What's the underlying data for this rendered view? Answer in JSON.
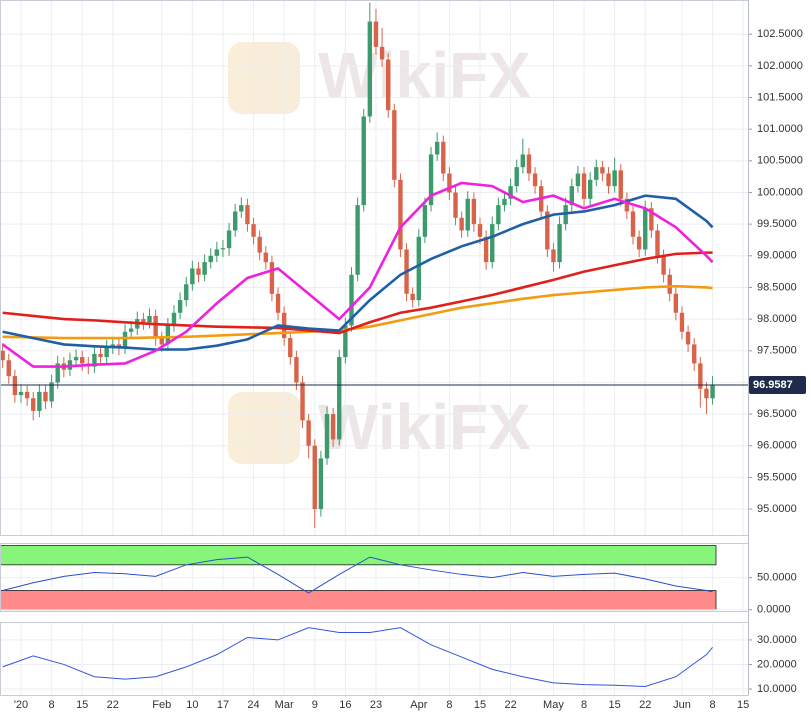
{
  "chart_data": {
    "type": "candlestick",
    "watermark": "WikiFX",
    "grid": true,
    "up_color": "#3d9a6c",
    "down_color": "#d9634a",
    "xlim": [
      -3.43,
      118.79
    ],
    "xticks": [
      {
        "value": 0,
        "label": "'20"
      },
      {
        "value": 5,
        "label": "8"
      },
      {
        "value": 10,
        "label": "15"
      },
      {
        "value": 15,
        "label": "22"
      },
      {
        "value": 23,
        "label": "Feb"
      },
      {
        "value": 28,
        "label": "10"
      },
      {
        "value": 33,
        "label": "17"
      },
      {
        "value": 38,
        "label": "24"
      },
      {
        "value": 43,
        "label": "Mar"
      },
      {
        "value": 48,
        "label": "9"
      },
      {
        "value": 53,
        "label": "16"
      },
      {
        "value": 58,
        "label": "23"
      },
      {
        "value": 65,
        "label": "Apr"
      },
      {
        "value": 70,
        "label": "8"
      },
      {
        "value": 75,
        "label": "15"
      },
      {
        "value": 80,
        "label": "22"
      },
      {
        "value": 87,
        "label": "May"
      },
      {
        "value": 92,
        "label": "8"
      },
      {
        "value": 97,
        "label": "15"
      },
      {
        "value": 102,
        "label": "22"
      },
      {
        "value": 108,
        "label": "Jun"
      },
      {
        "value": 113,
        "label": "8"
      },
      {
        "value": 118,
        "label": "15"
      }
    ],
    "ylim": [
      94.59,
      103.04
    ],
    "yticks": [
      {
        "value": 95,
        "label": "95.0000"
      },
      {
        "value": 95.5,
        "label": "95.5000"
      },
      {
        "value": 96,
        "label": "96.0000"
      },
      {
        "value": 96.5,
        "label": "96.5000"
      },
      {
        "value": 97,
        "label": "97.0000"
      },
      {
        "value": 97.5,
        "label": "97.5000"
      },
      {
        "value": 98,
        "label": "98.0000"
      },
      {
        "value": 98.5,
        "label": "98.5000"
      },
      {
        "value": 99,
        "label": "99.0000"
      },
      {
        "value": 99.5,
        "label": "99.5000"
      },
      {
        "value": 100,
        "label": "100.0000"
      },
      {
        "value": 100.5,
        "label": "100.5000"
      },
      {
        "value": 101,
        "label": "101.0000"
      },
      {
        "value": 101.5,
        "label": "101.5000"
      },
      {
        "value": 102,
        "label": "102.0000"
      },
      {
        "value": 102.5,
        "label": "102.5000"
      }
    ],
    "x": [
      -3,
      -2,
      -1,
      0,
      1,
      2,
      3,
      4,
      5,
      6,
      7,
      8,
      9,
      10,
      11,
      12,
      13,
      14,
      15,
      16,
      17,
      18,
      19,
      20,
      21,
      22,
      23,
      24,
      25,
      26,
      27,
      28,
      29,
      30,
      31,
      32,
      33,
      34,
      35,
      36,
      37,
      38,
      39,
      40,
      41,
      42,
      43,
      44,
      45,
      46,
      47,
      48,
      49,
      50,
      51,
      52,
      53,
      54,
      55,
      56,
      57,
      58,
      59,
      60,
      61,
      62,
      63,
      64,
      65,
      66,
      67,
      68,
      69,
      70,
      71,
      72,
      73,
      74,
      75,
      76,
      77,
      78,
      79,
      80,
      81,
      82,
      83,
      84,
      85,
      86,
      87,
      88,
      89,
      90,
      91,
      92,
      93,
      94,
      95,
      96,
      97,
      98,
      99,
      100,
      101,
      102,
      103,
      104,
      105,
      106,
      107,
      108,
      109,
      110,
      111,
      112,
      113
    ],
    "candles": [
      [
        97.5,
        97.62,
        97.23,
        97.35
      ],
      [
        97.35,
        97.45,
        96.98,
        97.1
      ],
      [
        97.1,
        97.2,
        96.68,
        96.8
      ],
      [
        96.8,
        96.97,
        96.68,
        96.85
      ],
      [
        96.85,
        96.95,
        96.63,
        96.75
      ],
      [
        96.75,
        96.85,
        96.4,
        96.55
      ],
      [
        96.55,
        96.97,
        96.45,
        96.85
      ],
      [
        96.85,
        96.95,
        96.58,
        96.7
      ],
      [
        96.7,
        97.12,
        96.6,
        97.0
      ],
      [
        97.0,
        97.42,
        96.9,
        97.3
      ],
      [
        97.3,
        97.4,
        97.08,
        97.2
      ],
      [
        97.2,
        97.47,
        97.1,
        97.35
      ],
      [
        97.35,
        97.52,
        97.25,
        97.4
      ],
      [
        97.4,
        97.5,
        97.18,
        97.3
      ],
      [
        97.3,
        97.4,
        97.13,
        97.25
      ],
      [
        97.25,
        97.57,
        97.15,
        97.45
      ],
      [
        97.45,
        97.55,
        97.28,
        97.4
      ],
      [
        97.4,
        97.67,
        97.3,
        97.55
      ],
      [
        97.55,
        97.72,
        97.45,
        97.6
      ],
      [
        97.6,
        97.7,
        97.43,
        97.55
      ],
      [
        97.55,
        97.92,
        97.45,
        97.8
      ],
      [
        97.8,
        97.97,
        97.7,
        97.85
      ],
      [
        97.85,
        98.12,
        97.75,
        98.0
      ],
      [
        98.0,
        98.1,
        97.83,
        97.95
      ],
      [
        97.95,
        98.17,
        97.85,
        98.05
      ],
      [
        98.05,
        98.15,
        97.58,
        97.7
      ],
      [
        97.7,
        97.8,
        97.48,
        97.6
      ],
      [
        97.6,
        98.02,
        97.5,
        97.9
      ],
      [
        97.9,
        98.22,
        97.8,
        98.1
      ],
      [
        98.1,
        98.42,
        98.0,
        98.3
      ],
      [
        98.3,
        98.67,
        98.2,
        98.55
      ],
      [
        98.55,
        98.92,
        98.45,
        98.8
      ],
      [
        98.8,
        98.9,
        98.58,
        98.7
      ],
      [
        98.7,
        99.02,
        98.6,
        98.9
      ],
      [
        98.9,
        99.12,
        98.8,
        99.0
      ],
      [
        99.0,
        99.22,
        98.9,
        99.1
      ],
      [
        99.1,
        99.25,
        98.98,
        99.12
      ],
      [
        99.12,
        99.52,
        99.0,
        99.4
      ],
      [
        99.4,
        99.82,
        99.3,
        99.7
      ],
      [
        99.7,
        99.92,
        99.6,
        99.8
      ],
      [
        99.8,
        99.9,
        99.38,
        99.5
      ],
      [
        99.5,
        99.6,
        99.18,
        99.3
      ],
      [
        99.3,
        99.4,
        98.93,
        99.05
      ],
      [
        99.05,
        99.15,
        98.78,
        98.9
      ],
      [
        98.9,
        99.0,
        98.28,
        98.4
      ],
      [
        98.4,
        98.5,
        97.98,
        98.1
      ],
      [
        98.1,
        98.2,
        97.58,
        97.7
      ],
      [
        97.7,
        97.8,
        97.28,
        97.4
      ],
      [
        97.4,
        97.5,
        96.88,
        97.0
      ],
      [
        97.0,
        97.1,
        96.28,
        96.4
      ],
      [
        96.4,
        96.5,
        95.8,
        96.0
      ],
      [
        96.0,
        96.1,
        94.7,
        95.0
      ],
      [
        95.0,
        95.92,
        94.88,
        95.8
      ],
      [
        95.8,
        96.62,
        95.7,
        96.5
      ],
      [
        96.5,
        96.6,
        95.98,
        96.1
      ],
      [
        96.1,
        97.52,
        96.0,
        97.4
      ],
      [
        97.4,
        98.02,
        97.3,
        97.9
      ],
      [
        97.9,
        98.82,
        97.8,
        98.7
      ],
      [
        98.7,
        99.92,
        98.6,
        99.8
      ],
      [
        99.8,
        101.32,
        99.7,
        101.2
      ],
      [
        101.2,
        103.0,
        101.1,
        102.7
      ],
      [
        102.7,
        102.9,
        102.18,
        102.3
      ],
      [
        102.3,
        102.6,
        101.98,
        102.1
      ],
      [
        102.1,
        102.2,
        101.18,
        101.3
      ],
      [
        101.3,
        101.4,
        100.08,
        100.2
      ],
      [
        100.2,
        100.3,
        98.98,
        99.1
      ],
      [
        99.1,
        99.2,
        98.28,
        98.4
      ],
      [
        98.4,
        98.5,
        98.18,
        98.3
      ],
      [
        98.3,
        99.42,
        98.2,
        99.3
      ],
      [
        99.3,
        99.92,
        99.2,
        99.8
      ],
      [
        99.8,
        100.72,
        99.7,
        100.6
      ],
      [
        100.6,
        100.95,
        100.5,
        100.8
      ],
      [
        100.8,
        100.9,
        100.18,
        100.3
      ],
      [
        100.3,
        100.4,
        99.88,
        100.0
      ],
      [
        100.0,
        100.1,
        99.48,
        99.6
      ],
      [
        99.6,
        99.7,
        99.28,
        99.4
      ],
      [
        99.4,
        100.02,
        99.3,
        99.9
      ],
      [
        99.9,
        100.0,
        99.38,
        99.5
      ],
      [
        99.5,
        99.6,
        99.18,
        99.3
      ],
      [
        99.3,
        99.4,
        98.78,
        98.9
      ],
      [
        98.9,
        99.62,
        98.8,
        99.5
      ],
      [
        99.5,
        99.92,
        99.4,
        99.8
      ],
      [
        99.8,
        100.02,
        99.7,
        99.9
      ],
      [
        99.9,
        100.22,
        99.8,
        100.1
      ],
      [
        100.1,
        100.52,
        100.0,
        100.4
      ],
      [
        100.4,
        100.85,
        100.3,
        100.6
      ],
      [
        100.6,
        100.7,
        100.18,
        100.3
      ],
      [
        100.3,
        100.4,
        99.98,
        100.1
      ],
      [
        100.1,
        100.2,
        99.58,
        99.7
      ],
      [
        99.7,
        99.8,
        98.98,
        99.1
      ],
      [
        99.1,
        99.2,
        98.75,
        98.9
      ],
      [
        98.9,
        99.62,
        98.8,
        99.5
      ],
      [
        99.5,
        99.92,
        99.4,
        99.8
      ],
      [
        99.8,
        100.22,
        99.7,
        100.1
      ],
      [
        100.1,
        100.42,
        100.0,
        100.3
      ],
      [
        100.3,
        100.4,
        99.78,
        99.9
      ],
      [
        99.9,
        100.32,
        99.8,
        100.2
      ],
      [
        100.2,
        100.52,
        100.1,
        100.4
      ],
      [
        100.4,
        100.5,
        100.18,
        100.3
      ],
      [
        100.3,
        100.4,
        99.98,
        100.1
      ],
      [
        100.1,
        100.55,
        100.0,
        100.35
      ],
      [
        100.35,
        100.45,
        99.78,
        99.9
      ],
      [
        99.9,
        100.0,
        99.58,
        99.7
      ],
      [
        99.7,
        99.8,
        99.18,
        99.3
      ],
      [
        99.3,
        99.4,
        98.98,
        99.1
      ],
      [
        99.1,
        99.87,
        99.0,
        99.75
      ],
      [
        99.75,
        99.85,
        99.28,
        99.4
      ],
      [
        99.4,
        99.5,
        98.88,
        99.0
      ],
      [
        99.0,
        99.1,
        98.58,
        98.7
      ],
      [
        98.7,
        98.8,
        98.28,
        98.4
      ],
      [
        98.4,
        98.5,
        97.98,
        98.1
      ],
      [
        98.1,
        98.2,
        97.68,
        97.8
      ],
      [
        97.8,
        97.9,
        97.48,
        97.6
      ],
      [
        97.6,
        97.7,
        97.18,
        97.3
      ],
      [
        97.3,
        97.4,
        96.6,
        96.9
      ],
      [
        96.9,
        97.0,
        96.5,
        96.75
      ],
      [
        96.75,
        97.1,
        96.65,
        96.9587
      ]
    ],
    "line_x": [
      -3,
      2,
      7,
      12,
      17,
      22,
      27,
      32,
      37,
      42,
      47,
      52,
      57,
      62,
      67,
      72,
      77,
      82,
      87,
      92,
      97,
      102,
      107,
      112,
      113
    ],
    "lines": [
      {
        "color": "#f39c12",
        "values": [
          97.72,
          97.71,
          97.7,
          97.7,
          97.7,
          97.71,
          97.72,
          97.74,
          97.76,
          97.78,
          97.8,
          97.82,
          97.88,
          97.98,
          98.08,
          98.18,
          98.25,
          98.32,
          98.38,
          98.42,
          98.46,
          98.5,
          98.52,
          98.5,
          98.49
        ]
      },
      {
        "color": "#e0201b",
        "values": [
          98.1,
          98.05,
          98.0,
          97.98,
          97.95,
          97.92,
          97.9,
          97.88,
          97.87,
          97.86,
          97.82,
          97.78,
          97.95,
          98.1,
          98.18,
          98.28,
          98.38,
          98.5,
          98.62,
          98.75,
          98.85,
          98.95,
          99.03,
          99.05,
          99.05
        ]
      },
      {
        "color": "#1f5fa8",
        "values": [
          97.8,
          97.7,
          97.6,
          97.57,
          97.55,
          97.52,
          97.52,
          97.58,
          97.68,
          97.9,
          97.85,
          97.82,
          98.3,
          98.7,
          98.95,
          99.15,
          99.3,
          99.5,
          99.65,
          99.7,
          99.8,
          99.95,
          99.9,
          99.55,
          99.45
        ]
      },
      {
        "color": "#ee22dd",
        "values": [
          97.6,
          97.25,
          97.25,
          97.28,
          97.3,
          97.5,
          97.8,
          98.25,
          98.65,
          98.8,
          98.4,
          98.0,
          98.5,
          99.45,
          99.95,
          100.15,
          100.1,
          99.85,
          99.95,
          99.75,
          99.9,
          99.75,
          99.45,
          99.0,
          98.9
        ]
      }
    ],
    "last_price": 96.9587,
    "last_price_color": "#1e2b4a",
    "panels": [
      {
        "type": "line",
        "color": "#2b4fd1",
        "ylim": [
          -2,
          104
        ],
        "yticks": [
          {
            "value": 0,
            "label": "0.0000"
          },
          {
            "value": 50,
            "label": "50.0000"
          }
        ],
        "bands": [
          {
            "from": 70,
            "to": 100,
            "color": "#86f57a"
          },
          {
            "from": 0,
            "to": 30,
            "color": "#ff8a8a"
          }
        ],
        "values": [
          30,
          42,
          52,
          58,
          56,
          52,
          70,
          78,
          82,
          55,
          26,
          55,
          82,
          70,
          62,
          55,
          50,
          58,
          52,
          55,
          57,
          48,
          37,
          30,
          28
        ]
      },
      {
        "type": "line",
        "color": "#3355dd",
        "ylim": [
          7.55,
          37.3
        ],
        "yticks": [
          {
            "value": 10,
            "label": "10.0000"
          },
          {
            "value": 20,
            "label": "20.0000"
          },
          {
            "value": 30,
            "label": "30.0000"
          }
        ],
        "bands": [],
        "values": [
          19,
          23.5,
          20,
          15,
          14,
          15,
          19,
          24,
          31,
          30,
          35,
          33,
          33,
          35,
          28,
          23,
          18,
          15,
          12.5,
          11.8,
          11.5,
          11,
          15,
          24,
          27
        ]
      }
    ]
  }
}
